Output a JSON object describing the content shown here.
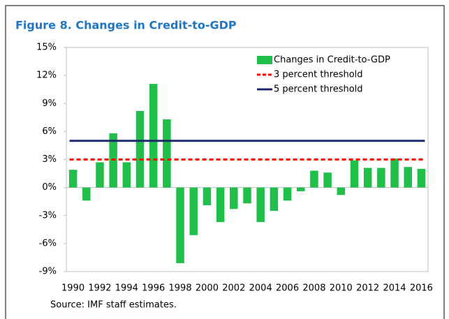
{
  "chart_data": {
    "type": "bar",
    "title": "Figure 8. Changes in Credit-to-GDP",
    "source": "Source: IMF staff estimates.",
    "categories": [
      "1990",
      null,
      "1992",
      null,
      "1994",
      null,
      "1996",
      null,
      "1998",
      null,
      "2000",
      null,
      "2002",
      null,
      "2004",
      null,
      "2006",
      null,
      "2008",
      null,
      "2010",
      null,
      "2012",
      null,
      "2014",
      null,
      "2016"
    ],
    "series": [
      {
        "name": "Changes in Credit-to-GDP",
        "color": "#1fbf4a",
        "values": [
          1.9,
          -1.4,
          2.7,
          5.8,
          2.7,
          8.2,
          11.1,
          7.3,
          -8.1,
          -5.1,
          -1.9,
          -3.7,
          -2.3,
          -1.7,
          -3.7,
          -2.5,
          -1.4,
          -0.4,
          1.8,
          1.6,
          -0.8,
          2.9,
          2.1,
          2.1,
          3.1,
          2.2,
          2.0
        ]
      }
    ],
    "reference_lines": [
      {
        "name": "3 percent threshold",
        "value": 3,
        "color": "#ff0000",
        "style": "dashed"
      },
      {
        "name": "5 percent threshold",
        "value": 5,
        "color": "#1f2a6b",
        "style": "solid"
      }
    ],
    "ylim": [
      -9,
      15
    ],
    "yticks": [
      {
        "value": -9,
        "label": "-9%"
      },
      {
        "value": -6,
        "label": "-6%"
      },
      {
        "value": -3,
        "label": "-3%"
      },
      {
        "value": 0,
        "label": "0%"
      },
      {
        "value": 3,
        "label": "3%"
      },
      {
        "value": 6,
        "label": "6%"
      },
      {
        "value": 9,
        "label": "9%"
      },
      {
        "value": 12,
        "label": "12%"
      },
      {
        "value": 15,
        "label": "15%"
      }
    ],
    "grid": false,
    "legend": "top-right"
  }
}
